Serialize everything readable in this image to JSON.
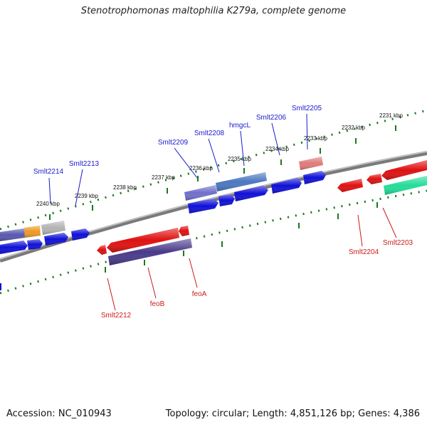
{
  "title": "Stenotrophomonas maltophilia K279a, complete genome",
  "footer": {
    "accession_label": "Accession:",
    "accession": "NC_010943",
    "topology_label": "Topology:",
    "topology": "circular",
    "length_label": "Length:",
    "length": "4,851,126 bp",
    "genes_label": "Genes:",
    "genes": "4,386"
  },
  "colors": {
    "backbone": "#7a7a7a",
    "tick": "#1a7a1a",
    "forward_label": "#1a1acc",
    "reverse_label": "#cc1a1a",
    "cds_forward": "#1010d8",
    "cds_reverse": "#e01010",
    "orange": "#ee9922",
    "gray": "#b4b4b4",
    "salmon": "#e07a7a",
    "teal": "#22dd99",
    "lavender": "#7070cc",
    "steelblue": "#4a78c0",
    "navy_purple": "#4a3a8a"
  },
  "scale_labels": [
    "2240 kbp",
    "2239 kbp",
    "2238 kbp",
    "2237 kbp",
    "2236 kbp",
    "2235 kbp",
    "2234 kbp",
    "2233 kbp",
    "2232 kbp",
    "2231 kbp"
  ],
  "forward_gene_labels": [
    "Smlt2214",
    "Smlt2213",
    "Smlt2209",
    "Smlt2208",
    "hmgcL",
    "Smlt2206",
    "Smlt2205"
  ],
  "reverse_gene_labels": [
    "Smlt2212",
    "feoB",
    "feoA",
    "Smlt2204",
    "Smlt2203"
  ]
}
